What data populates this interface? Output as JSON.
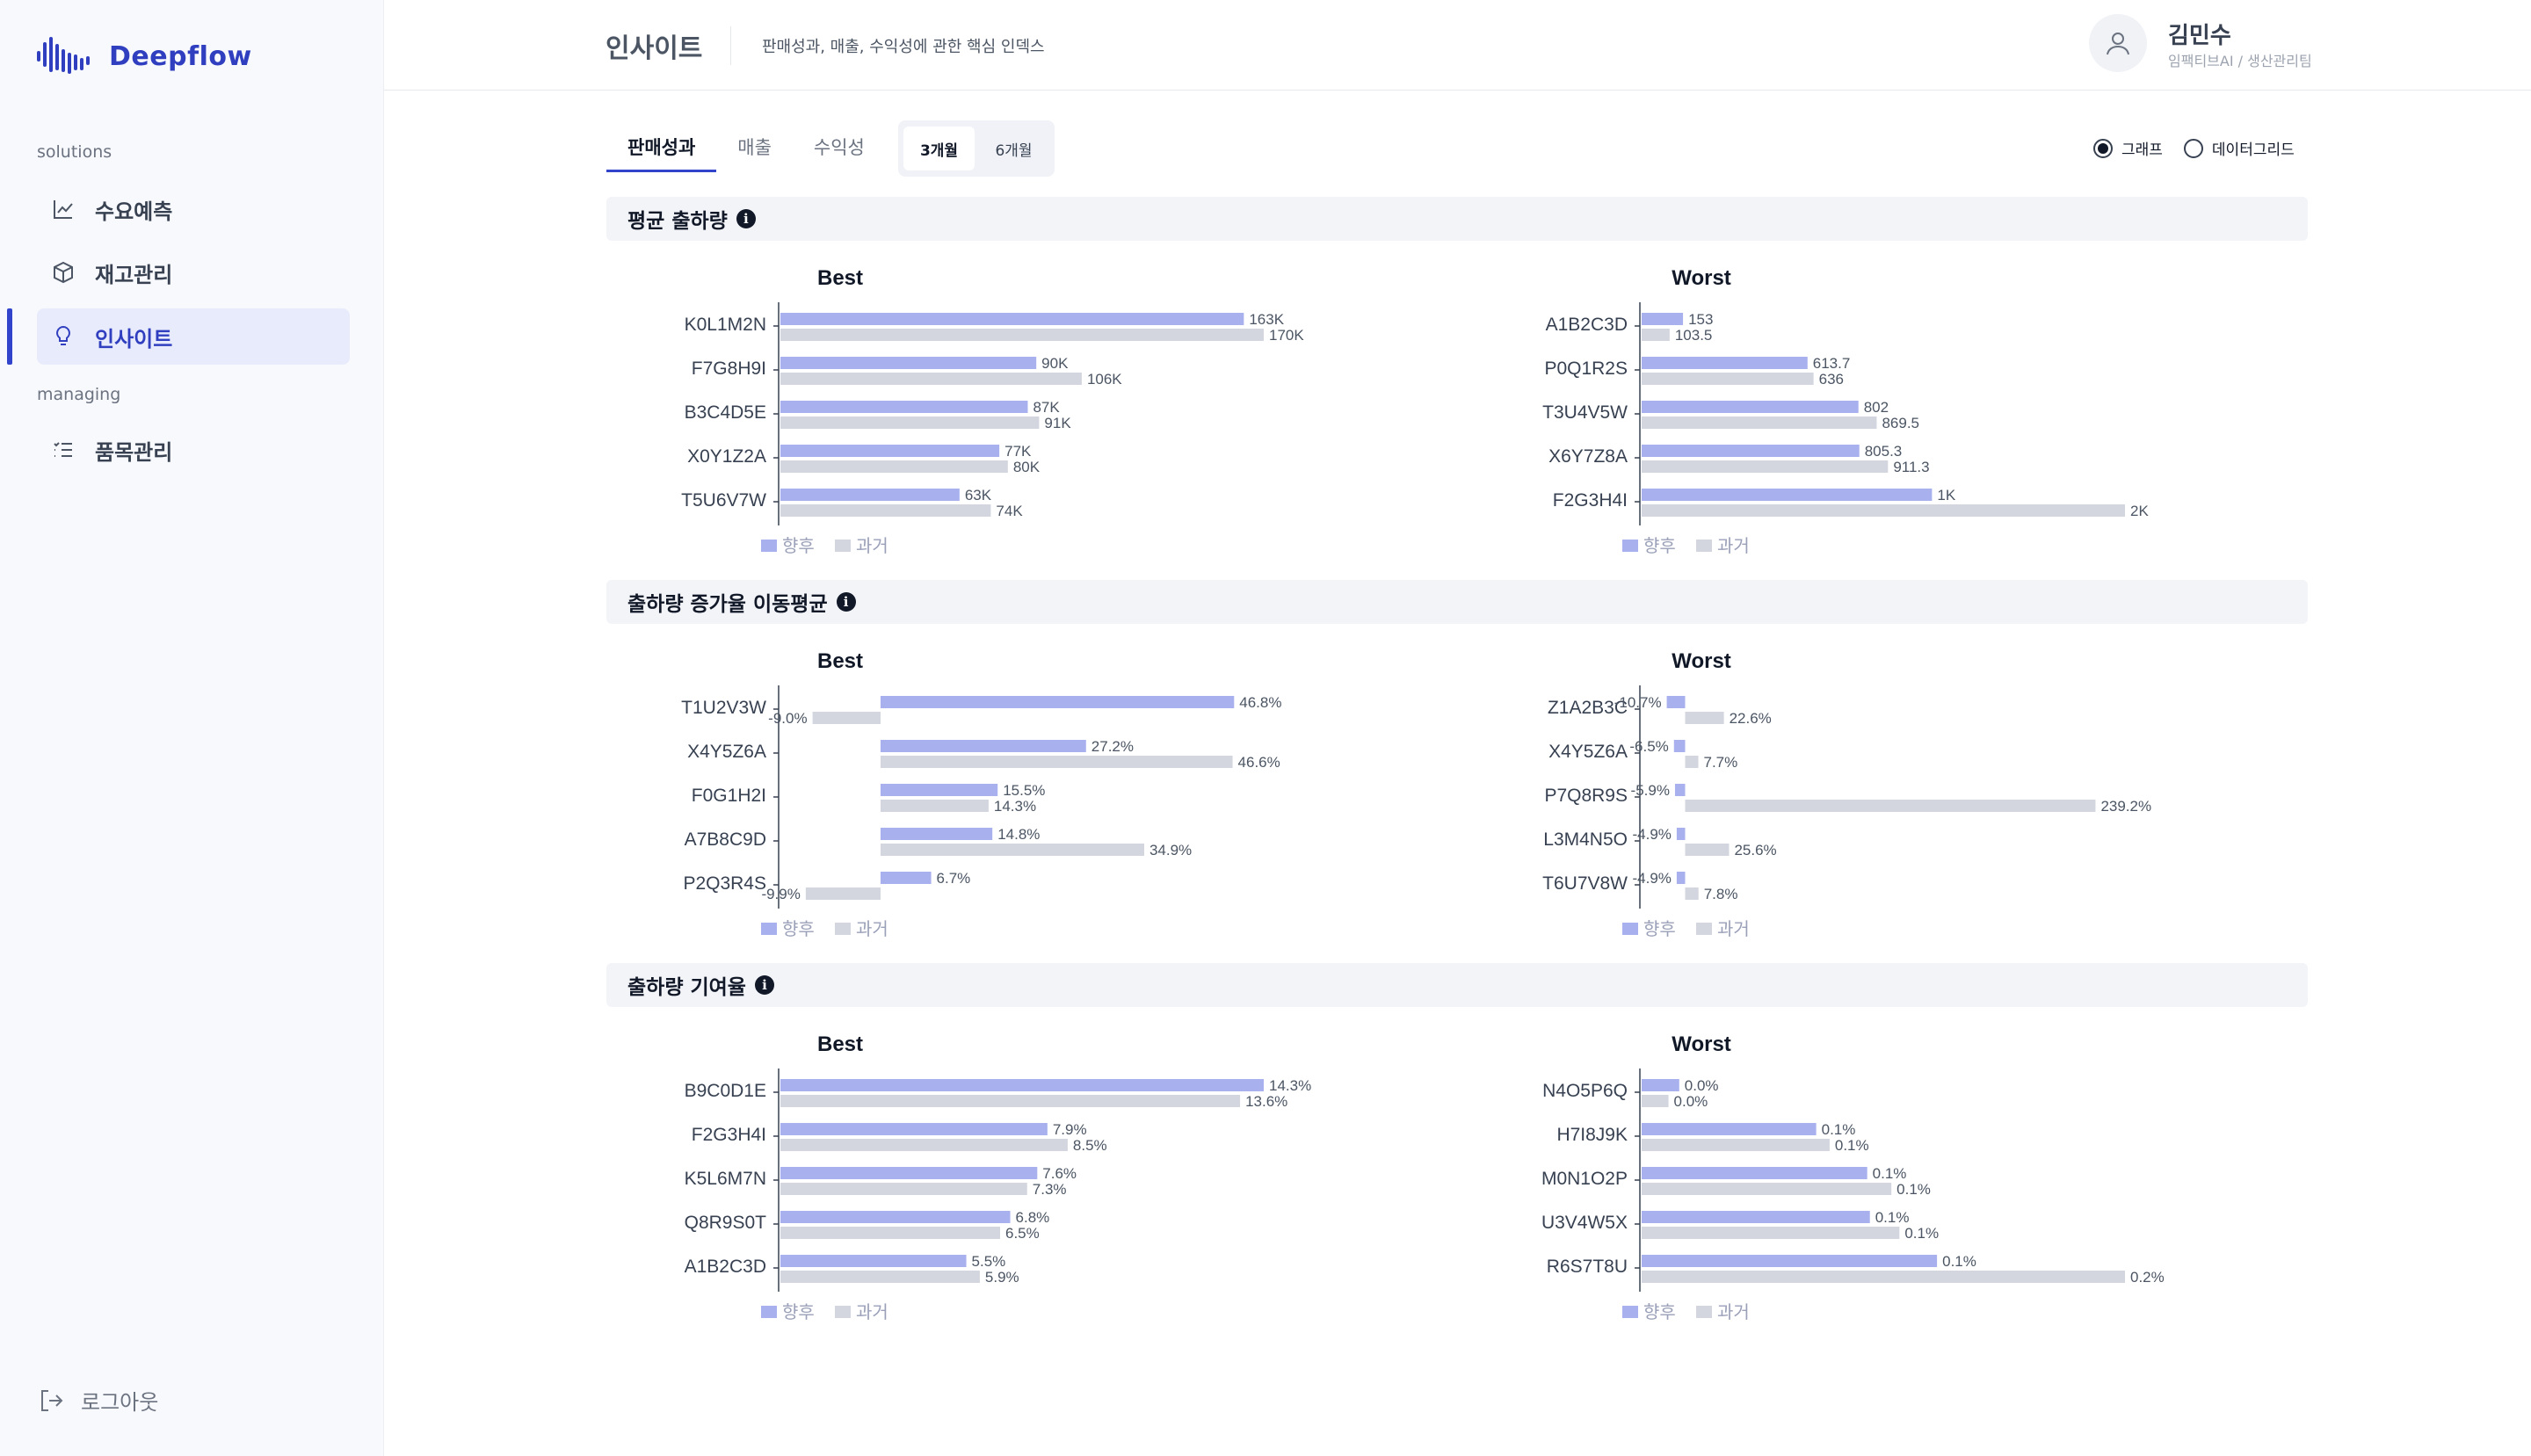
{
  "app": {
    "name": "Deepflow"
  },
  "sidebar": {
    "groups": [
      {
        "label": "solutions",
        "items": [
          {
            "label": "수요예측",
            "icon": "line-chart-icon"
          },
          {
            "label": "재고관리",
            "icon": "box-icon"
          },
          {
            "label": "인사이트",
            "icon": "lightbulb-icon",
            "active": true
          }
        ]
      },
      {
        "label": "managing",
        "items": [
          {
            "label": "품목관리",
            "icon": "list-icon"
          }
        ]
      }
    ],
    "logout_label": "로그아웃"
  },
  "header": {
    "title": "인사이트",
    "subtitle": "판매성과, 매출, 수익성에 관한 핵심 인덱스",
    "user_name": "김민수",
    "user_role": "임팩티브AI / 생산관리팀"
  },
  "tabs": [
    {
      "label": "판매성과",
      "active": true
    },
    {
      "label": "매출",
      "active": false
    },
    {
      "label": "수익성",
      "active": false
    }
  ],
  "period": [
    {
      "label": "3개월",
      "active": true
    },
    {
      "label": "6개월",
      "active": false
    }
  ],
  "view_mode": [
    {
      "label": "그래프",
      "selected": true
    },
    {
      "label": "데이터그리드",
      "selected": false
    }
  ],
  "colors": {
    "future": "#a8b0ee",
    "past": "#d3d6de",
    "accent": "#3344cc"
  },
  "legend": {
    "future": "향후",
    "past": "과거"
  },
  "sections": [
    {
      "title": "평균 출하량"
    },
    {
      "title": "출하량 증가율 이동평균"
    },
    {
      "title": "출하량 기여율"
    }
  ],
  "chart_data": [
    {
      "type": "bar",
      "orientation": "horizontal",
      "section": "평균 출하량",
      "title": "Best",
      "categories": [
        "K0L1M2N",
        "F7G8H9I",
        "B3C4D5E",
        "X0Y1Z2A",
        "T5U6V7W"
      ],
      "series": [
        {
          "name": "향후",
          "values": [
            163000,
            90000,
            87000,
            77000,
            63000
          ],
          "labels": [
            "163K",
            "90K",
            "87K",
            "77K",
            "63K"
          ]
        },
        {
          "name": "과거",
          "values": [
            170000,
            106000,
            91000,
            80000,
            74000
          ],
          "labels": [
            "170K",
            "106K",
            "91K",
            "80K",
            "74K"
          ]
        }
      ],
      "xlim": [
        0,
        170000
      ]
    },
    {
      "type": "bar",
      "orientation": "horizontal",
      "section": "평균 출하량",
      "title": "Worst",
      "categories": [
        "A1B2C3D",
        "P0Q1R2S",
        "T3U4V5W",
        "X6Y7Z8A",
        "F2G3H4I"
      ],
      "series": [
        {
          "name": "향후",
          "values": [
            153,
            613.7,
            802,
            805.3,
            1074
          ],
          "labels": [
            "153",
            "613.7",
            "802",
            "805.3",
            "1K"
          ]
        },
        {
          "name": "과거",
          "values": [
            103.5,
            636,
            869.5,
            911.3,
            1788
          ],
          "labels": [
            "103.5",
            "636",
            "869.5",
            "911.3",
            "2K"
          ]
        }
      ],
      "xlim": [
        0,
        1788
      ]
    },
    {
      "type": "bar",
      "orientation": "horizontal",
      "section": "출하량 증가율 이동평균",
      "title": "Best",
      "categories": [
        "T1U2V3W",
        "X4Y5Z6A",
        "F0G1H2I",
        "A7B8C9D",
        "P2Q3R4S"
      ],
      "series": [
        {
          "name": "향후",
          "values": [
            46.8,
            27.2,
            15.5,
            14.8,
            6.7
          ],
          "labels": [
            "46.8%",
            "27.2%",
            "15.5%",
            "14.8%",
            "6.7%"
          ]
        },
        {
          "name": "과거",
          "values": [
            -9.0,
            46.6,
            14.3,
            34.9,
            -9.9
          ],
          "labels": [
            "-9.0%",
            "46.6%",
            "14.3%",
            "34.9%",
            "-9.9%"
          ]
        }
      ],
      "xlim": [
        -10,
        47
      ]
    },
    {
      "type": "bar",
      "orientation": "horizontal",
      "section": "출하량 증가율 이동평균",
      "title": "Worst",
      "categories": [
        "Z1A2B3C",
        "X4Y5Z6A",
        "P7Q8R9S",
        "L3M4N5O",
        "T6U7V8W"
      ],
      "series": [
        {
          "name": "향후",
          "values": [
            -10.7,
            -6.5,
            -5.9,
            -4.9,
            -4.9
          ],
          "labels": [
            "-10.7%",
            "-6.5%",
            "-5.9%",
            "-4.9%",
            "-4.9%"
          ]
        },
        {
          "name": "과거",
          "values": [
            22.6,
            7.7,
            239.2,
            25.6,
            7.8
          ],
          "labels": [
            "22.6%",
            "7.7%",
            "239.2%",
            "25.6%",
            "7.8%"
          ]
        }
      ],
      "xlim": [
        -11,
        240
      ]
    },
    {
      "type": "bar",
      "orientation": "horizontal",
      "section": "출하량 기여율",
      "title": "Best",
      "categories": [
        "B9C0D1E",
        "F2G3H4I",
        "K5L6M7N",
        "Q8R9S0T",
        "A1B2C3D"
      ],
      "series": [
        {
          "name": "향후",
          "values": [
            14.3,
            7.9,
            7.6,
            6.8,
            5.5
          ],
          "labels": [
            "14.3%",
            "7.9%",
            "7.6%",
            "6.8%",
            "5.5%"
          ]
        },
        {
          "name": "과거",
          "values": [
            13.6,
            8.5,
            7.3,
            6.5,
            5.9
          ],
          "labels": [
            "13.6%",
            "8.5%",
            "7.3%",
            "6.5%",
            "5.9%"
          ]
        }
      ],
      "xlim": [
        0,
        14.3
      ]
    },
    {
      "type": "bar",
      "orientation": "horizontal",
      "section": "출하량 기여율",
      "title": "Worst",
      "categories": [
        "N4O5P6Q",
        "H7I8J9K",
        "M0N1O2P",
        "U3V4W5X",
        "R6S7T8U"
      ],
      "series": [
        {
          "name": "향후",
          "values": [
            0.014,
            0.065,
            0.084,
            0.085,
            0.11
          ],
          "labels": [
            "0.0%",
            "0.1%",
            "0.1%",
            "0.1%",
            "0.1%"
          ]
        },
        {
          "name": "과거",
          "values": [
            0.01,
            0.07,
            0.093,
            0.096,
            0.18
          ],
          "labels": [
            "0.0%",
            "0.1%",
            "0.1%",
            "0.1%",
            "0.2%"
          ]
        }
      ],
      "xlim": [
        0,
        0.18
      ]
    }
  ]
}
